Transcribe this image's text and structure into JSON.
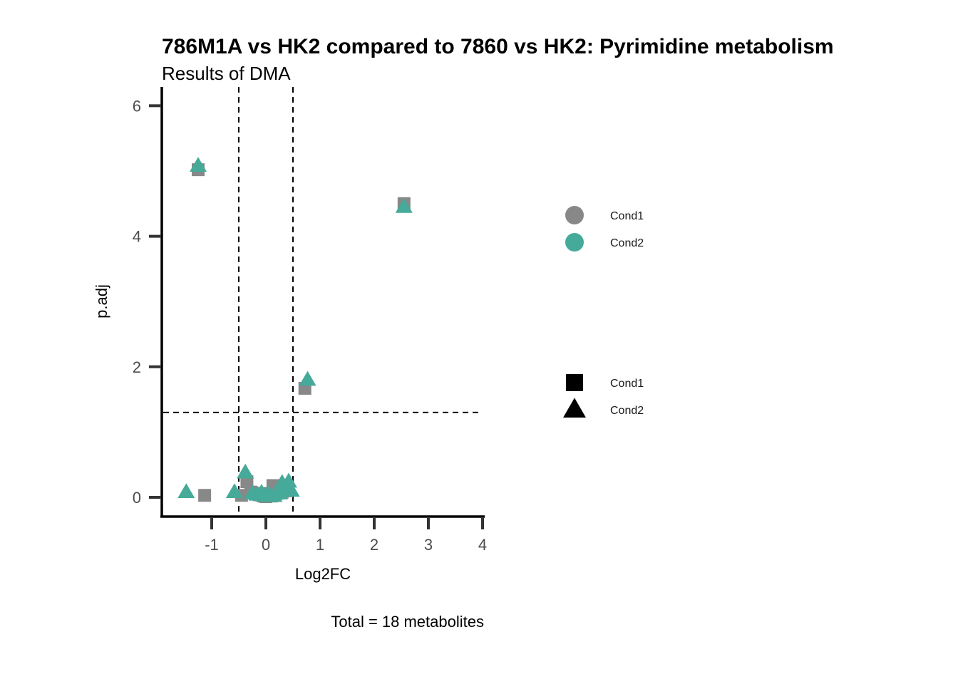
{
  "chart_data": {
    "type": "scatter",
    "title": "786M1A vs HK2 compared to 7860 vs HK2: Pyrimidine metabolism",
    "subtitle": "Results of DMA",
    "xlabel": "Log2FC",
    "ylabel": "p.adj",
    "caption": "Total = 18 metabolites",
    "xlim": [
      -1.95,
      4.0
    ],
    "ylim": [
      -0.3,
      6.3
    ],
    "x_ticks": [
      -1,
      0,
      1,
      2,
      3,
      4
    ],
    "x_tick_labels": [
      "-1",
      "0",
      "1",
      "2",
      "3",
      "4"
    ],
    "y_ticks": [
      0,
      2,
      4,
      6
    ],
    "y_tick_labels": [
      "0",
      "2",
      "4",
      "6"
    ],
    "reference_lines": {
      "vertical": [
        -0.5,
        0.5
      ],
      "horizontal": [
        1.3
      ]
    },
    "grid": false,
    "colors": {
      "Cond1": "#888888",
      "Cond2": "#45aa99"
    },
    "legend_placement": "right",
    "legend_color": {
      "items": [
        {
          "label": "Cond1",
          "color": "#888888",
          "shape": "circle"
        },
        {
          "label": "Cond2",
          "color": "#45aa99",
          "shape": "circle"
        }
      ]
    },
    "legend_shape": {
      "items": [
        {
          "label": "Cond1",
          "color": "#000000",
          "shape": "square"
        },
        {
          "label": "Cond2",
          "color": "#000000",
          "shape": "triangle"
        }
      ]
    },
    "series": [
      {
        "name": "Cond1",
        "color": "#888888",
        "shape": "square",
        "points": [
          {
            "x": -1.25,
            "y": 5.02
          },
          {
            "x": 2.55,
            "y": 4.5
          },
          {
            "x": 0.72,
            "y": 1.67
          },
          {
            "x": -1.13,
            "y": 0.03
          },
          {
            "x": -0.35,
            "y": 0.24
          },
          {
            "x": 0.13,
            "y": 0.18
          },
          {
            "x": -0.45,
            "y": 0.03
          },
          {
            "x": -0.2,
            "y": 0.05
          },
          {
            "x": -0.05,
            "y": 0.02
          },
          {
            "x": 0.05,
            "y": 0.03
          },
          {
            "x": 0.2,
            "y": 0.06
          },
          {
            "x": 0.3,
            "y": 0.08
          },
          {
            "x": -0.28,
            "y": 0.08
          },
          {
            "x": -0.12,
            "y": 0.04
          },
          {
            "x": 0.1,
            "y": 0.02
          },
          {
            "x": 0.38,
            "y": 0.1
          },
          {
            "x": 0.0,
            "y": 0.01
          },
          {
            "x": -0.02,
            "y": 0.06
          }
        ]
      },
      {
        "name": "Cond2",
        "color": "#45aa99",
        "shape": "triangle",
        "points": [
          {
            "x": -1.25,
            "y": 5.08
          },
          {
            "x": 2.55,
            "y": 4.45
          },
          {
            "x": 0.77,
            "y": 1.8
          },
          {
            "x": -1.47,
            "y": 0.08
          },
          {
            "x": -0.38,
            "y": 0.38
          },
          {
            "x": -0.58,
            "y": 0.08
          },
          {
            "x": 0.3,
            "y": 0.22
          },
          {
            "x": 0.42,
            "y": 0.24
          },
          {
            "x": 0.47,
            "y": 0.1
          },
          {
            "x": -0.25,
            "y": 0.06
          },
          {
            "x": -0.15,
            "y": 0.04
          },
          {
            "x": -0.05,
            "y": 0.03
          },
          {
            "x": 0.05,
            "y": 0.05
          },
          {
            "x": 0.15,
            "y": 0.02
          },
          {
            "x": 0.25,
            "y": 0.06
          },
          {
            "x": -0.08,
            "y": 0.07
          },
          {
            "x": 0.02,
            "y": 0.02
          },
          {
            "x": 0.35,
            "y": 0.14
          }
        ]
      }
    ]
  }
}
